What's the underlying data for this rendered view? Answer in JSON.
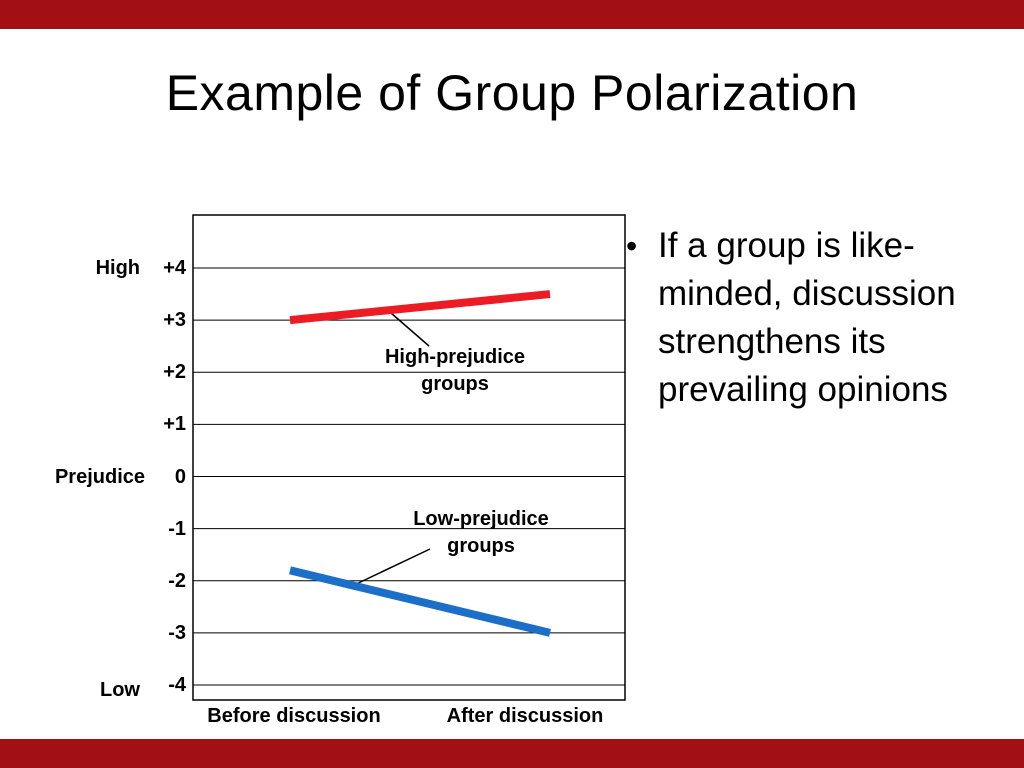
{
  "slide": {
    "title": "Example of Group Polarization",
    "accent_bar_color": "#A21014",
    "background_color": "#FFFFFF",
    "bullet": {
      "marker": "•",
      "text": "If a group is like-\nminded, discussion\nstrengthens its\nprevailing opinions"
    }
  },
  "chart_data": {
    "type": "line",
    "title": "",
    "categories": [
      "Before discussion",
      "After discussion"
    ],
    "series": [
      {
        "name": "High-prejudice groups",
        "values": [
          3.0,
          3.5
        ],
        "color": "#EC1C24"
      },
      {
        "name": "Low-prejudice groups",
        "values": [
          -1.8,
          -3.0
        ],
        "color": "#1B6FC9"
      }
    ],
    "ytick_values": [
      4,
      3,
      2,
      1,
      0,
      -1,
      -2,
      -3,
      -4
    ],
    "ytick_labels": [
      "+4",
      "+3",
      "+2",
      "+1",
      "0",
      "-1",
      "-2",
      "-3",
      "-4"
    ],
    "ylim": [
      -4.3,
      5.0
    ],
    "yaxis_annotations": {
      "high": "High",
      "axis_title": "Prejudice",
      "low": "Low"
    },
    "grid": true,
    "legend_position": "inline-annotations",
    "axis_color": "#000000"
  }
}
